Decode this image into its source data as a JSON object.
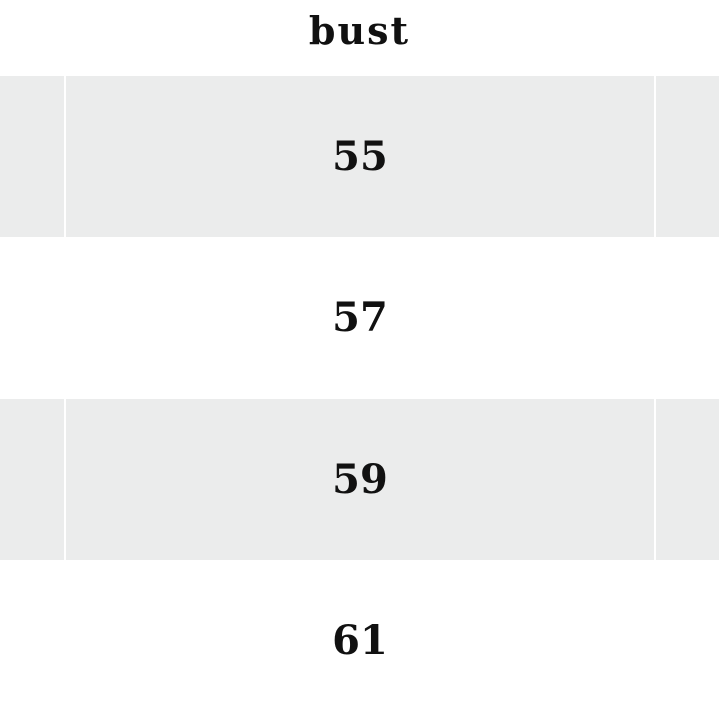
{
  "table": {
    "header": "bust",
    "rows": [
      "55",
      "57",
      "59",
      "61"
    ],
    "colors": {
      "stripe": "#ebecec",
      "background": "#ffffff"
    }
  }
}
